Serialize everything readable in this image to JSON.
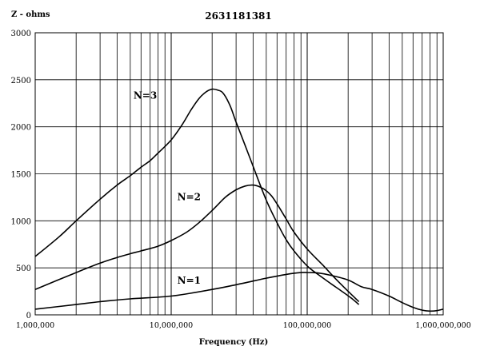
{
  "chart_data": {
    "type": "line",
    "title": "2631181381",
    "ylabel": "Z - ohms",
    "xlabel": "Frequency (Hz)",
    "x_scale": "log",
    "xlim": [
      1000000,
      1000000000
    ],
    "ylim": [
      0,
      3000
    ],
    "grid": true,
    "x_tick_labels": [
      "1,000,000",
      "10,000,000",
      "100,000,000",
      "1,000,000,000"
    ],
    "y_tick_labels": [
      "0",
      "500",
      "1000",
      "1500",
      "2000",
      "2500",
      "3000"
    ],
    "series": [
      {
        "name": "N=3",
        "x": [
          1000000,
          1500000,
          2000000,
          3000000,
          4000000,
          5000000,
          6000000,
          7000000,
          8000000,
          10000000,
          12000000,
          14000000,
          16000000,
          18000000,
          20000000,
          22000000,
          24000000,
          27000000,
          30000000,
          35000000,
          40000000,
          50000000,
          60000000,
          70000000,
          80000000,
          100000000,
          120000000,
          150000000,
          180000000,
          210000000,
          240000000
        ],
        "y": [
          620,
          830,
          1000,
          1230,
          1380,
          1480,
          1570,
          1640,
          1720,
          1860,
          2020,
          2180,
          2300,
          2370,
          2400,
          2390,
          2360,
          2230,
          2050,
          1800,
          1580,
          1220,
          980,
          800,
          680,
          520,
          430,
          330,
          250,
          180,
          110
        ]
      },
      {
        "name": "N=2",
        "x": [
          1000000,
          2000000,
          3000000,
          4000000,
          5000000,
          6000000,
          8000000,
          10000000,
          13000000,
          16000000,
          20000000,
          25000000,
          30000000,
          35000000,
          40000000,
          45000000,
          50000000,
          55000000,
          60000000,
          70000000,
          80000000,
          100000000,
          130000000,
          160000000,
          200000000,
          240000000
        ],
        "y": [
          270,
          450,
          550,
          610,
          650,
          680,
          730,
          790,
          880,
          980,
          1110,
          1250,
          1330,
          1370,
          1380,
          1360,
          1320,
          1260,
          1180,
          1020,
          880,
          700,
          530,
          390,
          250,
          140
        ]
      },
      {
        "name": "N=1",
        "x": [
          1000000,
          2000000,
          3000000,
          5000000,
          10000000,
          20000000,
          30000000,
          50000000,
          70000000,
          90000000,
          100000000,
          120000000,
          150000000,
          200000000,
          250000000,
          300000000,
          400000000,
          500000000,
          600000000,
          700000000,
          800000000,
          900000000,
          1000000000
        ],
        "y": [
          60,
          110,
          140,
          170,
          200,
          270,
          320,
          390,
          430,
          450,
          450,
          445,
          420,
          370,
          300,
          270,
          200,
          130,
          80,
          50,
          40,
          45,
          60
        ]
      }
    ]
  }
}
